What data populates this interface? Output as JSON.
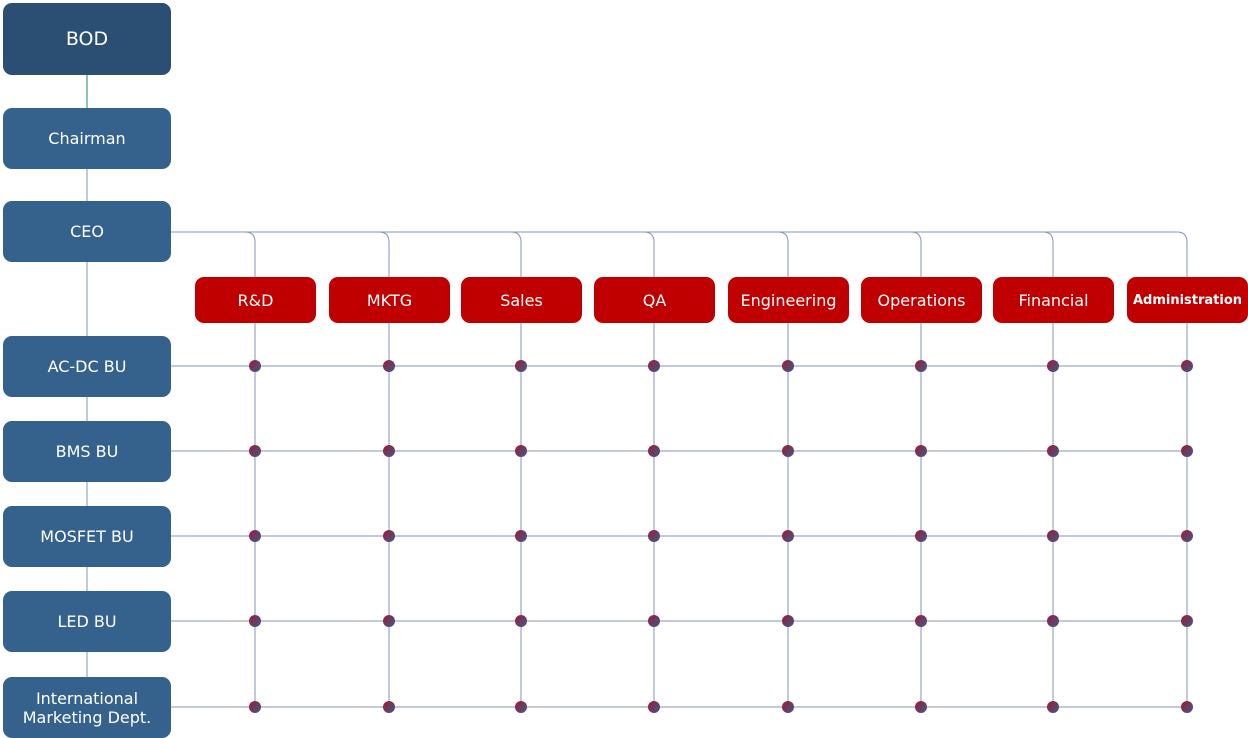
{
  "hierarchy": [
    {
      "label": "BOD"
    },
    {
      "label": "Chairman"
    },
    {
      "label": "CEO"
    }
  ],
  "business_units": [
    {
      "label": "AC-DC BU"
    },
    {
      "label": "BMS BU"
    },
    {
      "label": "MOSFET BU"
    },
    {
      "label": "LED BU"
    },
    {
      "label": "International Marketing Dept."
    }
  ],
  "departments": [
    {
      "label": "R&D"
    },
    {
      "label": "MKTG"
    },
    {
      "label": "Sales"
    },
    {
      "label": "QA"
    },
    {
      "label": "Engineering"
    },
    {
      "label": "Operations"
    },
    {
      "label": "Financial"
    },
    {
      "label": "Administration"
    }
  ],
  "colors": {
    "bod": "#2b4f73",
    "executive": "#35628c",
    "department": "#c00000",
    "connector": "#8096b4",
    "node_dot": "#a01830"
  }
}
